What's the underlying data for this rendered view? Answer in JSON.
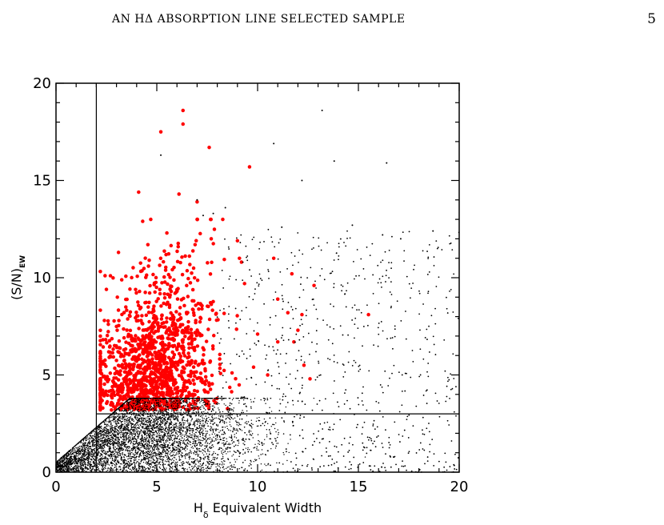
{
  "header": {
    "running_title": "An Hδ Absorption Line Selected Sample",
    "page_number": "5"
  },
  "chart_data": {
    "type": "scatter",
    "title": "",
    "xlabel": "H",
    "xlabel_subscript": "δ",
    "xlabel_suffix": " Equivalent Width",
    "ylabel": "(S/N)",
    "ylabel_subscript": "EW",
    "xlim": [
      0,
      20
    ],
    "ylim": [
      0,
      20
    ],
    "x_ticks": [
      0,
      5,
      10,
      15,
      20
    ],
    "y_ticks": [
      0,
      5,
      10,
      15,
      20
    ],
    "grid": false,
    "legend": "none",
    "cut_lines": {
      "x": 2,
      "y": 3
    },
    "series": [
      {
        "color": "#ff0000",
        "marker_size": 4.5,
        "points": [
          [
            6.3,
            18.6
          ],
          [
            6.3,
            17.9
          ],
          [
            5.2,
            17.5
          ],
          [
            7.6,
            16.7
          ],
          [
            9.6,
            15.7
          ],
          [
            4.1,
            14.4
          ],
          [
            6.1,
            14.3
          ],
          [
            7.0,
            13.9
          ],
          [
            4.7,
            13.0
          ],
          [
            4.3,
            12.9
          ],
          [
            5.5,
            12.3
          ],
          [
            7.7,
            12.0
          ],
          [
            3.1,
            11.3
          ],
          [
            6.9,
            11.7
          ],
          [
            9.1,
            11.0
          ],
          [
            9.2,
            10.8
          ],
          [
            9.0,
            11.9
          ],
          [
            10.8,
            11.0
          ],
          [
            11.7,
            10.2
          ],
          [
            12.8,
            9.6
          ],
          [
            2.7,
            10.1
          ],
          [
            2.5,
            9.4
          ],
          [
            11.0,
            8.9
          ],
          [
            12.2,
            8.1
          ],
          [
            15.5,
            8.1
          ],
          [
            11.5,
            8.2
          ],
          [
            12.0,
            7.3
          ],
          [
            10.0,
            7.1
          ],
          [
            11.0,
            6.7
          ],
          [
            11.8,
            6.7
          ],
          [
            2.4,
            7.8
          ],
          [
            12.3,
            5.5
          ],
          [
            12.6,
            4.8
          ],
          [
            9.8,
            5.4
          ],
          [
            10.5,
            5.0
          ]
        ],
        "cloud": {
          "count": 1350,
          "x_mean": 4.8,
          "x_sd": 1.5,
          "x_min": 2.2,
          "x_max": 9.5,
          "y_min": 3.2,
          "y_scale": 2.4,
          "y_max": 13.0
        }
      },
      {
        "color": "#000000",
        "marker_size": 1.4,
        "cloud": {
          "count": 7000,
          "x_mean": 4.2,
          "x_sd": 2.6,
          "x_min": 0,
          "x_max": 20,
          "y_mean": 1.6,
          "y_sd": 1.1,
          "y_min": 0,
          "y_max": 3.8
        },
        "sparse": {
          "count": 750,
          "x_min": 8,
          "x_max": 20,
          "y_min": 0,
          "y_max": 12.5
        },
        "points": [
          [
            13.2,
            18.6
          ],
          [
            13.8,
            16.0
          ],
          [
            16.4,
            15.9
          ],
          [
            10.8,
            16.9
          ],
          [
            12.2,
            15.0
          ],
          [
            5.2,
            16.3
          ],
          [
            7.0,
            14.0
          ],
          [
            8.4,
            13.6
          ],
          [
            7.8,
            13.3
          ],
          [
            18.7,
            12.4
          ],
          [
            17.1,
            12.0
          ],
          [
            16.2,
            12.2
          ],
          [
            14.7,
            12.7
          ],
          [
            11.2,
            12.6
          ],
          [
            7.3,
            13.2
          ]
        ]
      }
    ]
  }
}
